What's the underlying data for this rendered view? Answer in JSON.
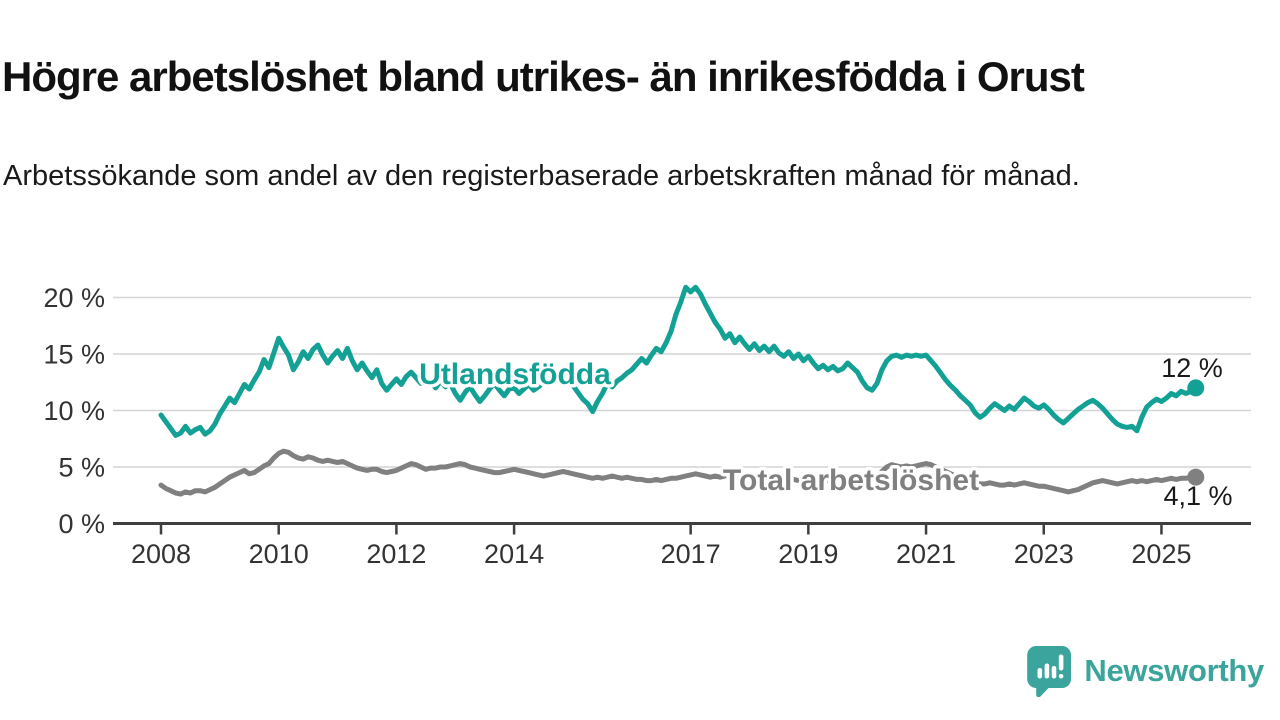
{
  "title": "Högre arbetslöshet bland utrikes- än inrikesfödda i Orust",
  "subtitle": "Arbetssökande som andel av den registerbaserade arbetskraften månad för månad.",
  "branding": {
    "logo_text": "Newsworthy",
    "logo_icon": "newsworthy-speech-bubble-bar-chart-icon",
    "logo_color": "#3ba49c"
  },
  "colors": {
    "utlandsfodda_line": "#14a195",
    "total_line": "#808080",
    "grid": "#d4d4d4",
    "axis": "#3f3f3f",
    "text": "#1a1a1a"
  },
  "chart_data": {
    "type": "line",
    "x_unit": "month",
    "x_start": "2008-01",
    "x_end": "2025-08",
    "grid": true,
    "legend": "inline-labels",
    "y_axis": {
      "tick_labels": [
        "0 %",
        "5 %",
        "10 %",
        "15 %",
        "20 %"
      ],
      "tick_values": [
        0,
        5,
        10,
        15,
        20
      ],
      "range": [
        0,
        21.5
      ]
    },
    "x_axis": {
      "tick_years": [
        2008,
        2010,
        2012,
        2014,
        2017,
        2019,
        2021,
        2023,
        2025
      ]
    },
    "series": [
      {
        "name": "Utlandsfödda",
        "color": "#14a195",
        "end_label": "12 %",
        "end_value": 12,
        "values": [
          9.6,
          9.0,
          8.4,
          7.8,
          8.0,
          8.6,
          8.0,
          8.3,
          8.5,
          7.9,
          8.2,
          8.8,
          9.7,
          10.4,
          11.1,
          10.7,
          11.5,
          12.3,
          11.9,
          12.7,
          13.4,
          14.5,
          13.8,
          15.1,
          16.4,
          15.6,
          14.9,
          13.6,
          14.3,
          15.2,
          14.6,
          15.4,
          15.8,
          14.9,
          14.2,
          14.8,
          15.3,
          14.6,
          15.5,
          14.4,
          13.6,
          14.2,
          13.5,
          12.9,
          13.6,
          12.4,
          11.8,
          12.3,
          12.8,
          12.3,
          13.0,
          13.4,
          12.9,
          12.4,
          12.9,
          12.5,
          12.0,
          12.6,
          12.1,
          12.4,
          11.5,
          10.9,
          11.6,
          12.1,
          11.4,
          10.8,
          11.3,
          11.9,
          12.4,
          11.8,
          11.3,
          11.9,
          12.0,
          11.5,
          11.9,
          12.3,
          11.8,
          12.1,
          12.5,
          12.8,
          12.4,
          12.7,
          12.3,
          12.6,
          12.2,
          11.6,
          11.0,
          10.6,
          9.9,
          10.8,
          11.5,
          12.4,
          12.1,
          12.6,
          12.9,
          13.3,
          13.6,
          14.1,
          14.6,
          14.2,
          14.9,
          15.5,
          15.2,
          16.0,
          17.0,
          18.5,
          19.6,
          20.9,
          20.5,
          20.9,
          20.3,
          19.4,
          18.6,
          17.8,
          17.2,
          16.4,
          16.8,
          16.0,
          16.5,
          15.9,
          15.4,
          15.9,
          15.3,
          15.7,
          15.2,
          15.7,
          15.1,
          14.8,
          15.2,
          14.6,
          15.0,
          14.4,
          14.8,
          14.2,
          13.7,
          14.0,
          13.6,
          13.9,
          13.5,
          13.7,
          14.2,
          13.8,
          13.4,
          12.6,
          12.0,
          11.8,
          12.4,
          13.6,
          14.4,
          14.8,
          14.9,
          14.7,
          14.9,
          14.8,
          14.9,
          14.8,
          14.9,
          14.4,
          13.9,
          13.3,
          12.7,
          12.2,
          11.8,
          11.3,
          10.9,
          10.5,
          9.8,
          9.4,
          9.7,
          10.2,
          10.6,
          10.3,
          10.0,
          10.4,
          10.1,
          10.6,
          11.1,
          10.8,
          10.4,
          10.2,
          10.5,
          10.1,
          9.6,
          9.2,
          8.9,
          9.3,
          9.7,
          10.1,
          10.4,
          10.7,
          10.9,
          10.6,
          10.2,
          9.7,
          9.2,
          8.8,
          8.6,
          8.5,
          8.6,
          8.2,
          9.4,
          10.3,
          10.7,
          11.0,
          10.8,
          11.1,
          11.5,
          11.3,
          11.7,
          11.5,
          11.7,
          12.0
        ]
      },
      {
        "name": "Total arbetslöshet",
        "color": "#808080",
        "end_label": "4,1 %",
        "end_value": 4.1,
        "values": [
          3.4,
          3.1,
          2.9,
          2.7,
          2.6,
          2.8,
          2.7,
          2.9,
          2.9,
          2.8,
          3.0,
          3.2,
          3.5,
          3.8,
          4.1,
          4.3,
          4.5,
          4.7,
          4.4,
          4.5,
          4.8,
          5.1,
          5.3,
          5.8,
          6.2,
          6.4,
          6.3,
          6.0,
          5.8,
          5.7,
          5.9,
          5.8,
          5.6,
          5.5,
          5.6,
          5.5,
          5.4,
          5.5,
          5.3,
          5.1,
          4.9,
          4.8,
          4.7,
          4.8,
          4.8,
          4.6,
          4.5,
          4.6,
          4.7,
          4.9,
          5.1,
          5.3,
          5.2,
          5.0,
          4.8,
          4.9,
          4.9,
          5.0,
          5.0,
          5.1,
          5.2,
          5.3,
          5.2,
          5.0,
          4.9,
          4.8,
          4.7,
          4.6,
          4.5,
          4.5,
          4.6,
          4.7,
          4.8,
          4.7,
          4.6,
          4.5,
          4.4,
          4.3,
          4.2,
          4.3,
          4.4,
          4.5,
          4.6,
          4.5,
          4.4,
          4.3,
          4.2,
          4.1,
          4.0,
          4.1,
          4.0,
          4.1,
          4.2,
          4.1,
          4.0,
          4.1,
          4.0,
          3.9,
          3.9,
          3.8,
          3.8,
          3.9,
          3.8,
          3.9,
          4.0,
          4.0,
          4.1,
          4.2,
          4.3,
          4.4,
          4.3,
          4.2,
          4.1,
          4.2,
          4.1,
          4.2,
          4.3,
          4.2,
          4.1,
          4.2,
          4.1,
          4.0,
          3.9,
          3.9,
          3.8,
          3.9,
          3.8,
          3.9,
          4.0,
          3.9,
          3.8,
          3.9,
          3.9,
          3.8,
          3.8,
          3.9,
          3.8,
          3.9,
          3.8,
          3.9,
          4.0,
          3.9,
          3.8,
          3.9,
          3.9,
          3.8,
          4.0,
          4.6,
          5.0,
          5.2,
          5.1,
          5.0,
          5.1,
          5.0,
          5.1,
          5.2,
          5.3,
          5.2,
          5.0,
          4.8,
          4.6,
          4.4,
          4.2,
          4.0,
          3.9,
          3.8,
          3.6,
          3.5,
          3.5,
          3.6,
          3.5,
          3.4,
          3.4,
          3.5,
          3.4,
          3.5,
          3.6,
          3.5,
          3.4,
          3.3,
          3.3,
          3.2,
          3.1,
          3.0,
          2.9,
          2.8,
          2.9,
          3.0,
          3.2,
          3.4,
          3.6,
          3.7,
          3.8,
          3.7,
          3.6,
          3.5,
          3.6,
          3.7,
          3.8,
          3.7,
          3.8,
          3.7,
          3.8,
          3.9,
          3.8,
          3.9,
          4.0,
          3.9,
          4.0,
          4.0,
          4.1,
          4.1
        ]
      }
    ]
  }
}
